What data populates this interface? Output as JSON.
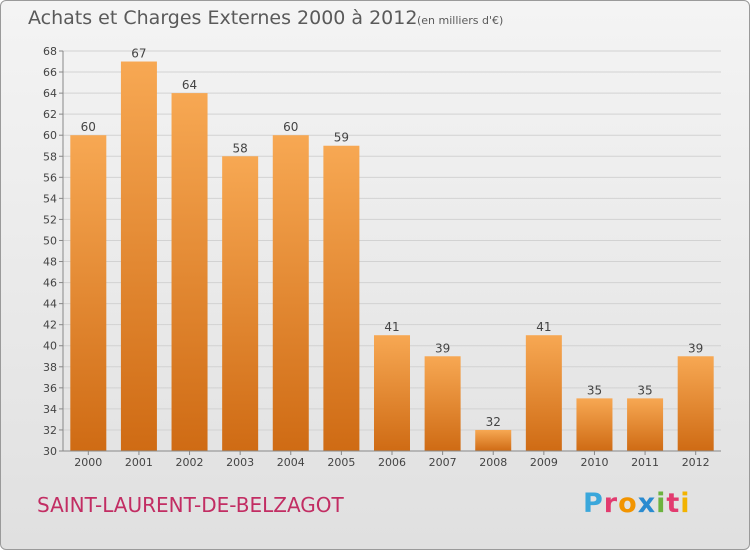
{
  "header": {
    "title": "Achats et Charges Externes 2000 à 2012",
    "unit": "(en milliers d'€)"
  },
  "footer": {
    "commune": "SAINT-LAURENT-DE-BELZAGOT",
    "logo_text": "Proxiti"
  },
  "colors": {
    "bar_top": "#f7a853",
    "bar_bottom": "#cf6b14",
    "commune": "#c22d63",
    "logo": [
      "#3aa7db",
      "#e23b6f",
      "#f29400",
      "#2a8bd0",
      "#6cb33f",
      "#e23b6f",
      "#f2b300"
    ]
  },
  "chart_data": {
    "type": "bar",
    "categories": [
      "2000",
      "2001",
      "2002",
      "2003",
      "2004",
      "2005",
      "2006",
      "2007",
      "2008",
      "2009",
      "2010",
      "2011",
      "2012"
    ],
    "values": [
      60,
      67,
      64,
      58,
      60,
      59,
      41,
      39,
      32,
      41,
      35,
      35,
      39
    ],
    "title": "Achats et Charges Externes 2000 à 2012",
    "ylabel": "",
    "xlabel": "",
    "ylim": [
      30,
      68
    ],
    "yticks": [
      30,
      32,
      34,
      36,
      38,
      40,
      42,
      44,
      46,
      48,
      50,
      52,
      54,
      56,
      58,
      60,
      62,
      64,
      66,
      68
    ],
    "grid": true,
    "legend": "none"
  }
}
